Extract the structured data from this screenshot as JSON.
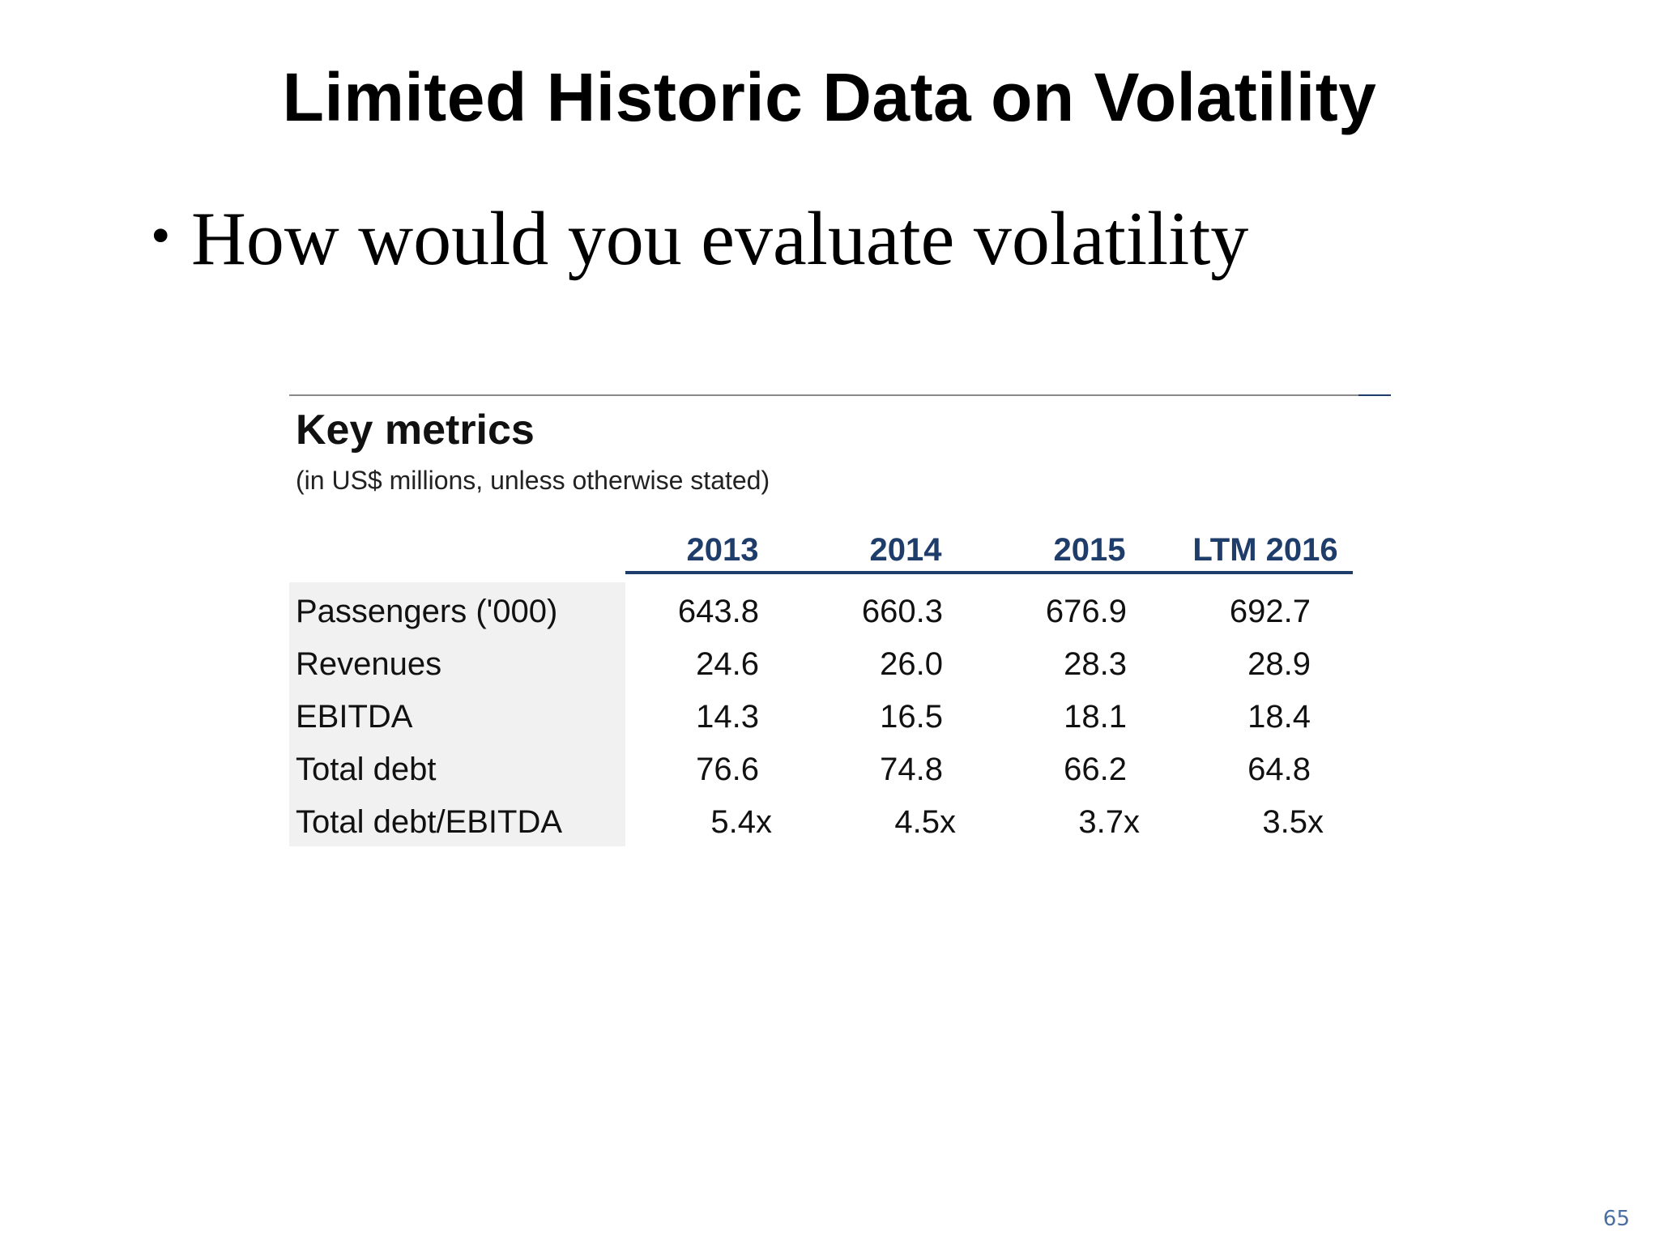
{
  "slide": {
    "title": "Limited Historic Data on Volatility",
    "bullet": "How would you evaluate volatility",
    "page_number": "65"
  },
  "key_metrics": {
    "title": "Key metrics",
    "subtitle": "(in US$ millions, unless otherwise stated)",
    "columns": [
      "2013",
      "2014",
      "2015",
      "LTM 2016"
    ],
    "rows": [
      {
        "label": "Passengers ('000)",
        "values": [
          "643.8",
          "660.3",
          "676.9",
          "692.7"
        ]
      },
      {
        "label": "Revenues",
        "values": [
          "24.6",
          "26.0",
          "28.3",
          "28.9"
        ]
      },
      {
        "label": "EBITDA",
        "values": [
          "14.3",
          "16.5",
          "18.1",
          "18.4"
        ]
      },
      {
        "label": "Total debt",
        "values": [
          "76.6",
          "74.8",
          "66.2",
          "64.8"
        ]
      },
      {
        "label": "Total debt/EBITDA",
        "values": [
          "5.4x",
          "4.5x",
          "3.7x",
          "3.5x"
        ]
      }
    ],
    "colors": {
      "header_text": "#1f3d6b",
      "header_rule": "#1f3d6b",
      "label_shading": "#f1f1f1"
    }
  }
}
